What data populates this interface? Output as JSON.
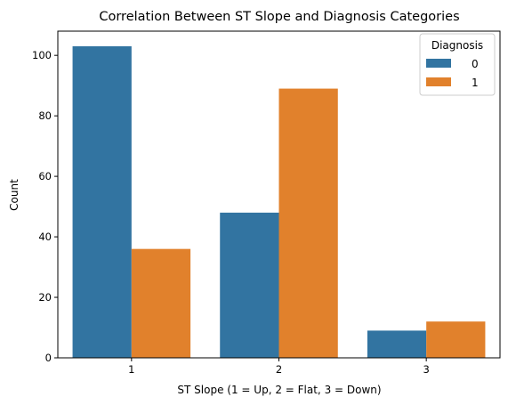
{
  "chart_data": {
    "type": "bar",
    "title": "Correlation Between ST Slope and Diagnosis Categories",
    "xlabel": "ST Slope (1 = Up, 2 = Flat, 3 = Down)",
    "ylabel": "Count",
    "categories": [
      "1",
      "2",
      "3"
    ],
    "ylim": [
      0,
      108
    ],
    "yticks": [
      0,
      20,
      40,
      60,
      80,
      100
    ],
    "grid": false,
    "legend": {
      "title": "Diagnosis",
      "placement": "top-right"
    },
    "series": [
      {
        "name": "0",
        "color": "#3274a1",
        "values": [
          103,
          48,
          9
        ]
      },
      {
        "name": "1",
        "color": "#e1812c",
        "values": [
          36,
          89,
          12
        ]
      }
    ]
  }
}
